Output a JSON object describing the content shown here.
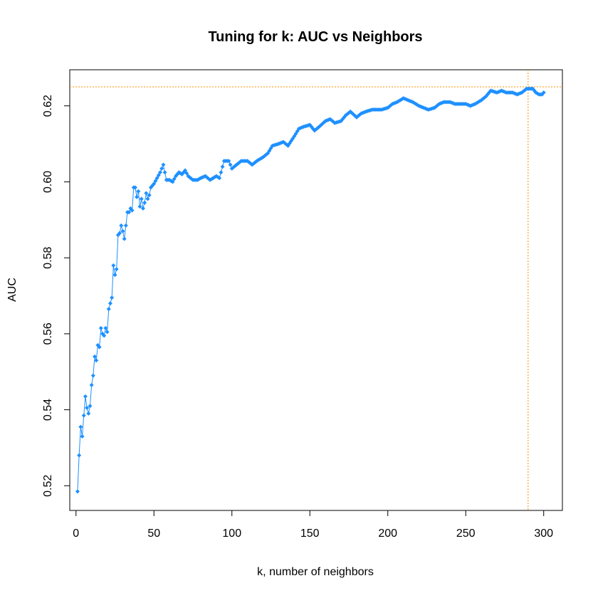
{
  "chart_data": {
    "type": "line",
    "title": "Tuning for k: AUC vs Neighbors",
    "xlabel": "k, number of neighbors",
    "ylabel": "AUC",
    "xlim": [
      -4,
      312
    ],
    "ylim": [
      0.5135,
      0.6295
    ],
    "xticks": [
      0,
      50,
      100,
      150,
      200,
      250,
      300
    ],
    "yticks": [
      0.52,
      0.54,
      0.56,
      0.58,
      0.6,
      0.62
    ],
    "ytick_labels": [
      "0.52",
      "0.54",
      "0.56",
      "0.58",
      "0.60",
      "0.62"
    ],
    "grid": false,
    "series_color": "#1E90FF",
    "reference_color": "#FF8C00",
    "reference_lines": {
      "best_k": 290,
      "best_auc": 0.625
    },
    "anchors": [
      [
        1,
        0.5185
      ],
      [
        2,
        0.528
      ],
      [
        3,
        0.5355
      ],
      [
        4,
        0.533
      ],
      [
        5,
        0.5385
      ],
      [
        6,
        0.5435
      ],
      [
        7,
        0.5405
      ],
      [
        8,
        0.539
      ],
      [
        9,
        0.541
      ],
      [
        10,
        0.5465
      ],
      [
        11,
        0.549
      ],
      [
        12,
        0.554
      ],
      [
        13,
        0.553
      ],
      [
        14,
        0.557
      ],
      [
        15,
        0.5565
      ],
      [
        16,
        0.5615
      ],
      [
        17,
        0.56
      ],
      [
        18,
        0.5595
      ],
      [
        19,
        0.5615
      ],
      [
        20,
        0.5605
      ],
      [
        21,
        0.5665
      ],
      [
        22,
        0.568
      ],
      [
        23,
        0.5695
      ],
      [
        24,
        0.578
      ],
      [
        25,
        0.5755
      ],
      [
        26,
        0.577
      ],
      [
        27,
        0.586
      ],
      [
        28,
        0.5865
      ],
      [
        29,
        0.5885
      ],
      [
        30,
        0.587
      ],
      [
        31,
        0.585
      ],
      [
        32,
        0.5885
      ],
      [
        33,
        0.592
      ],
      [
        34,
        0.592
      ],
      [
        35,
        0.593
      ],
      [
        36,
        0.5925
      ],
      [
        37,
        0.5985
      ],
      [
        38,
        0.5985
      ],
      [
        39,
        0.596
      ],
      [
        40,
        0.5975
      ],
      [
        41,
        0.5935
      ],
      [
        42,
        0.5955
      ],
      [
        43,
        0.593
      ],
      [
        44,
        0.5945
      ],
      [
        45,
        0.597
      ],
      [
        46,
        0.5955
      ],
      [
        47,
        0.5965
      ],
      [
        48,
        0.5985
      ],
      [
        50,
        0.5995
      ],
      [
        52,
        0.601
      ],
      [
        54,
        0.6025
      ],
      [
        56,
        0.6045
      ],
      [
        58,
        0.6005
      ],
      [
        60,
        0.6005
      ],
      [
        62,
        0.6
      ],
      [
        64,
        0.6015
      ],
      [
        66,
        0.6025
      ],
      [
        68,
        0.602
      ],
      [
        70,
        0.603
      ],
      [
        72,
        0.6015
      ],
      [
        75,
        0.6005
      ],
      [
        78,
        0.6005
      ],
      [
        80,
        0.601
      ],
      [
        83,
        0.6015
      ],
      [
        86,
        0.6005
      ],
      [
        90,
        0.6015
      ],
      [
        92,
        0.601
      ],
      [
        95,
        0.6055
      ],
      [
        98,
        0.6055
      ],
      [
        100,
        0.6035
      ],
      [
        103,
        0.6045
      ],
      [
        106,
        0.6055
      ],
      [
        110,
        0.6055
      ],
      [
        113,
        0.6045
      ],
      [
        116,
        0.6055
      ],
      [
        120,
        0.6065
      ],
      [
        123,
        0.6075
      ],
      [
        126,
        0.6095
      ],
      [
        130,
        0.61
      ],
      [
        133,
        0.6105
      ],
      [
        136,
        0.6095
      ],
      [
        140,
        0.612
      ],
      [
        143,
        0.614
      ],
      [
        146,
        0.6145
      ],
      [
        150,
        0.615
      ],
      [
        153,
        0.6135
      ],
      [
        156,
        0.6145
      ],
      [
        160,
        0.616
      ],
      [
        163,
        0.6165
      ],
      [
        166,
        0.6155
      ],
      [
        170,
        0.616
      ],
      [
        173,
        0.6175
      ],
      [
        176,
        0.6185
      ],
      [
        180,
        0.617
      ],
      [
        183,
        0.618
      ],
      [
        186,
        0.6185
      ],
      [
        190,
        0.619
      ],
      [
        193,
        0.619
      ],
      [
        196,
        0.619
      ],
      [
        200,
        0.6195
      ],
      [
        203,
        0.6205
      ],
      [
        206,
        0.621
      ],
      [
        210,
        0.622
      ],
      [
        213,
        0.6215
      ],
      [
        216,
        0.621
      ],
      [
        220,
        0.62
      ],
      [
        223,
        0.6195
      ],
      [
        226,
        0.619
      ],
      [
        230,
        0.6195
      ],
      [
        233,
        0.6205
      ],
      [
        236,
        0.621
      ],
      [
        240,
        0.621
      ],
      [
        243,
        0.6205
      ],
      [
        246,
        0.6205
      ],
      [
        250,
        0.6205
      ],
      [
        253,
        0.62
      ],
      [
        256,
        0.6205
      ],
      [
        260,
        0.6215
      ],
      [
        263,
        0.6225
      ],
      [
        266,
        0.624
      ],
      [
        270,
        0.6235
      ],
      [
        273,
        0.624
      ],
      [
        276,
        0.6235
      ],
      [
        280,
        0.6235
      ],
      [
        283,
        0.623
      ],
      [
        286,
        0.6235
      ],
      [
        289,
        0.6245
      ],
      [
        291,
        0.6245
      ],
      [
        293,
        0.6245
      ],
      [
        295,
        0.6235
      ],
      [
        297,
        0.623
      ],
      [
        299,
        0.623
      ],
      [
        300,
        0.6235
      ]
    ]
  }
}
